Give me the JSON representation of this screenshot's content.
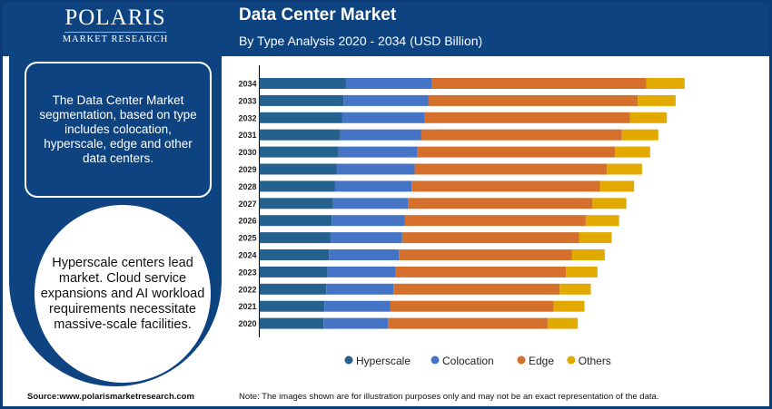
{
  "logo": {
    "name": "POLARIS",
    "tagline": "MARKET RESEARCH"
  },
  "header": {
    "title": "Data Center Market",
    "subtitle": "By Type Analysis 2020 - 2034 (USD Billion)"
  },
  "sidebar": {
    "info_text": "The Data Center Market segmentation, based on type includes colocation, hyperscale, edge and other data centers.",
    "highlight_text": "Hyperscale centers lead market. Cloud service expansions and AI workload requirements necessitate massive-scale facilities."
  },
  "footer": {
    "source": "Source:www.polarismarketresearch.com",
    "note": "Note: The images shown are for illustration purposes only and may not be an exact representation of the data."
  },
  "chart_data": {
    "type": "bar",
    "orientation": "horizontal",
    "stacked": true,
    "title": "Data Center Market",
    "subtitle": "By Type Analysis 2020 - 2034 (USD Billion)",
    "categories": [
      "2034",
      "2033",
      "2032",
      "2031",
      "2030",
      "2029",
      "2028",
      "2027",
      "2026",
      "2025",
      "2024",
      "2023",
      "2022",
      "2021",
      "2020"
    ],
    "series": [
      {
        "name": "Hyperscale",
        "color": "#25618f",
        "values": [
          95,
          92.7,
          91,
          89.3,
          87.3,
          85,
          83,
          81.3,
          79.7,
          78,
          76.7,
          75.3,
          73.7,
          71.7,
          70.7
        ]
      },
      {
        "name": "Colocation",
        "color": "#4574c6",
        "values": [
          95.3,
          93.3,
          91.3,
          88.7,
          87,
          86,
          84.7,
          82.3,
          80.7,
          79.3,
          77,
          75,
          74,
          72.7,
          71
        ]
      },
      {
        "name": "Edge",
        "color": "#d46f2c",
        "values": [
          236,
          230.7,
          225.7,
          221.3,
          217.3,
          211.7,
          207.3,
          203.3,
          199,
          194.7,
          190.7,
          187.3,
          183,
          179.7,
          175.7
        ]
      },
      {
        "name": "Others",
        "color": "#e2a900",
        "values": [
          42,
          41.7,
          40.7,
          40,
          38.7,
          38.7,
          37.7,
          37.3,
          36.7,
          36,
          36,
          34.7,
          34.3,
          34,
          33.3
        ]
      }
    ],
    "value_axis_shown": false,
    "grid": false,
    "legend": "bottom"
  }
}
